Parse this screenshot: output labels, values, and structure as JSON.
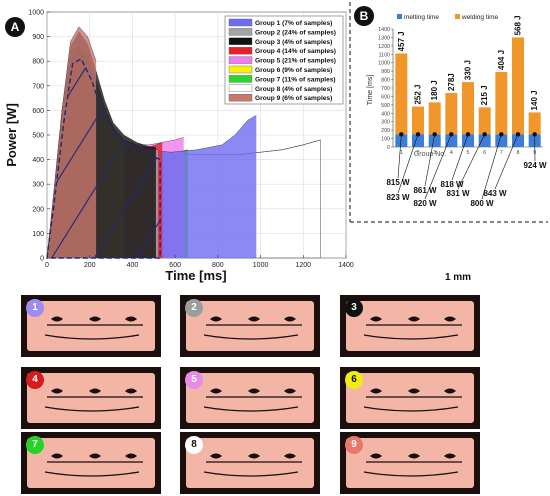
{
  "panel_a": {
    "badge": "A",
    "legend": [
      {
        "label": "Group 1 (7% of samples)",
        "color": "#6f6cf2"
      },
      {
        "label": "Group 2 (24% of samples)",
        "color": "#a3a3a3"
      },
      {
        "label": "Group 3 (4% of samples)",
        "color": "#111111"
      },
      {
        "label": "Group 4 (14% of samples)",
        "color": "#e8202c"
      },
      {
        "label": "Group 5 (21% of samples)",
        "color": "#f07cf0"
      },
      {
        "label": "Group 6 (9% of samples)",
        "color": "#f6f10f"
      },
      {
        "label": "Group 7 (11% of samples)",
        "color": "#2fd52f"
      },
      {
        "label": "Group 8 (4% of samples)",
        "color": "#ffffff"
      },
      {
        "label": "Group 9 (6% of samples)",
        "color": "#c8776c"
      }
    ]
  },
  "panel_b": {
    "badge": "B",
    "legend": [
      {
        "label": "melting time",
        "color": "#3c7dd9"
      },
      {
        "label": "welding time",
        "color": "#f0962a"
      }
    ]
  },
  "scale_bar": {
    "label": "1 mm"
  },
  "samples": [
    {
      "label": "1",
      "color": "#9e8cf0"
    },
    {
      "label": "2",
      "color": "#9c9c9c"
    },
    {
      "label": "3",
      "color": "#111111"
    },
    {
      "label": "4",
      "color": "#d61c1c"
    },
    {
      "label": "5",
      "color": "#e68ce6"
    },
    {
      "label": "6",
      "color": "#f2ec12"
    },
    {
      "label": "7",
      "color": "#26d426"
    },
    {
      "label": "8",
      "color": "#ffffff"
    },
    {
      "label": "9",
      "color": "#e8786b"
    }
  ],
  "chart_data": [
    {
      "type": "area",
      "xlabel": "Time [ms]",
      "ylabel": "Power [W]",
      "xlim": [
        0,
        1400
      ],
      "ylim": [
        0,
        1000
      ],
      "xticks": [
        0,
        200,
        400,
        600,
        800,
        1000,
        1200,
        1400
      ],
      "yticks": [
        0,
        100,
        200,
        300,
        400,
        500,
        600,
        700,
        800,
        900,
        1000
      ],
      "grid": true,
      "legend_position": "top-right",
      "series": [
        {
          "name": "Group 1 (7% of samples)",
          "x": [
            0,
            30,
            70,
            110,
            150,
            190,
            230,
            270,
            310,
            360,
            420,
            480,
            530,
            580,
            640,
            700,
            760,
            820,
            880,
            940,
            980
          ],
          "y": [
            0,
            220,
            530,
            770,
            840,
            800,
            700,
            590,
            520,
            470,
            450,
            440,
            435,
            430,
            435,
            440,
            450,
            460,
            500,
            560,
            580
          ]
        },
        {
          "name": "Group 2 (24% of samples)",
          "x": [
            0,
            30,
            70,
            110,
            150,
            190,
            230,
            270,
            310,
            360,
            420,
            470,
            520
          ],
          "y": [
            0,
            230,
            560,
            800,
            860,
            820,
            720,
            610,
            530,
            480,
            455,
            445,
            440
          ]
        },
        {
          "name": "Group 3 (4% of samples)",
          "x": [
            0,
            30,
            70,
            110,
            150,
            190,
            230,
            270,
            310,
            360,
            420,
            470,
            510
          ],
          "y": [
            0,
            250,
            600,
            860,
            920,
            870,
            760,
            640,
            550,
            500,
            470,
            455,
            450
          ]
        },
        {
          "name": "Group 4 (14% of samples)",
          "x": [
            0,
            30,
            70,
            110,
            150,
            190,
            230,
            270,
            310,
            360,
            420,
            480,
            540
          ],
          "y": [
            0,
            220,
            540,
            780,
            840,
            790,
            680,
            570,
            500,
            460,
            450,
            450,
            470
          ]
        },
        {
          "name": "Group 5 (21% of samples)",
          "x": [
            0,
            30,
            70,
            110,
            150,
            190,
            230,
            270,
            310,
            360,
            420,
            480,
            540,
            600,
            640
          ],
          "y": [
            0,
            220,
            540,
            780,
            840,
            800,
            700,
            600,
            530,
            480,
            460,
            460,
            470,
            480,
            490
          ]
        },
        {
          "name": "Group 6 (9% of samples)",
          "x": [
            0,
            30,
            70,
            110,
            150,
            190,
            230,
            270,
            310,
            360
          ],
          "y": [
            0,
            230,
            560,
            800,
            850,
            800,
            700,
            600,
            520,
            470
          ]
        },
        {
          "name": "Group 7 (11% of samples)",
          "x": [
            0,
            30,
            70,
            110,
            150,
            190,
            230,
            270,
            310,
            360,
            420,
            480,
            540,
            600,
            660
          ],
          "y": [
            0,
            220,
            530,
            770,
            830,
            790,
            690,
            580,
            500,
            460,
            440,
            435,
            430,
            430,
            440
          ]
        },
        {
          "name": "Group 8 (4% of samples)",
          "x": [
            0,
            30,
            70,
            110,
            150,
            190,
            230,
            270,
            310,
            360,
            420,
            480,
            540,
            600,
            700,
            800,
            900,
            1000,
            1100,
            1200,
            1280
          ],
          "y": [
            0,
            220,
            520,
            760,
            830,
            790,
            690,
            580,
            500,
            460,
            440,
            430,
            425,
            420,
            420,
            420,
            420,
            430,
            440,
            460,
            480
          ]
        },
        {
          "name": "Group 9 (6% of samples)",
          "x": [
            0,
            30,
            70,
            110,
            150,
            190,
            230
          ],
          "y": [
            0,
            250,
            600,
            880,
            940,
            900,
            800
          ]
        }
      ]
    },
    {
      "type": "bar",
      "xlabel": "Group No.",
      "ylabel": "Time [ms]",
      "ylim": [
        0,
        1400
      ],
      "yticks": [
        0,
        100,
        200,
        300,
        400,
        500,
        600,
        700,
        800,
        900,
        1000,
        1100,
        1200,
        1300,
        1400
      ],
      "categories": [
        "1",
        "2",
        "3",
        "4",
        "5",
        "6",
        "7",
        "8",
        "9"
      ],
      "series": [
        {
          "name": "melting time",
          "values": [
            150,
            150,
            150,
            150,
            150,
            150,
            150,
            150,
            150
          ]
        },
        {
          "name": "welding time",
          "values": [
            960,
            330,
            380,
            490,
            620,
            320,
            740,
            1150,
            260
          ]
        }
      ],
      "bar_labels": [
        "457 J",
        "252 J",
        "180 J",
        "278J",
        "330 J",
        "215 J",
        "404 J",
        "568 J",
        "140 J"
      ],
      "power_labels": [
        "815 W",
        "823 W",
        "861 W",
        "820 W",
        "818 W",
        "831 W",
        "800 W",
        "843 W",
        "924 W"
      ]
    }
  ]
}
